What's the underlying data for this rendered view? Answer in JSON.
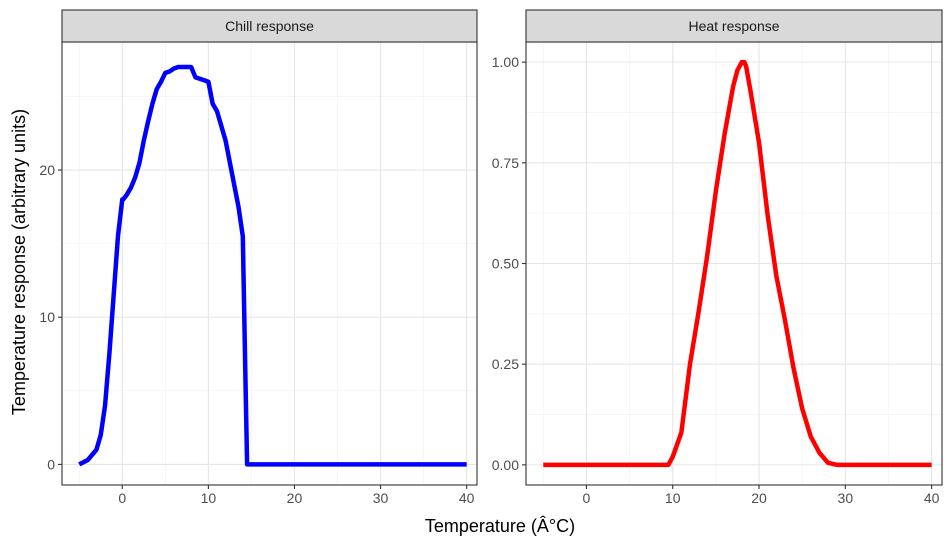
{
  "chart_data": {
    "type": "line",
    "facets": true,
    "xlabel": "Temperature (Â°C)",
    "ylabel": "Temperature response (arbitrary units)",
    "panels": [
      {
        "strip_label": "Chill response",
        "color": "#0000FF",
        "xlim": [
          -7,
          41.2
        ],
        "ylim": [
          -1.4,
          28.7
        ],
        "x_ticks": [
          0,
          10,
          20,
          30,
          40
        ],
        "y_ticks": [
          0,
          10,
          20
        ],
        "y_tick_labels": [
          "0",
          "10",
          "20"
        ],
        "x": [
          -5,
          -4,
          -3,
          -2.5,
          -2,
          -1.5,
          -1,
          -0.5,
          0,
          0.1,
          0.5,
          1,
          1.5,
          2,
          2.5,
          3,
          3.5,
          4,
          4.5,
          5,
          5.5,
          6,
          6.5,
          7,
          7.5,
          8,
          8.5,
          9,
          10,
          10.5,
          11,
          12,
          12.5,
          13,
          13.5,
          14,
          14.3,
          14.5,
          15,
          20,
          25,
          30,
          35,
          40
        ],
        "y": [
          0,
          0.3,
          1.0,
          2.0,
          4.0,
          7.5,
          11.5,
          15.5,
          18.0,
          18.0,
          18.3,
          18.8,
          19.5,
          20.5,
          22.0,
          23.3,
          24.5,
          25.5,
          26.0,
          26.6,
          26.7,
          26.9,
          27.0,
          27.0,
          27.0,
          27.0,
          26.3,
          26.2,
          26.0,
          24.5,
          24.0,
          22.0,
          20.5,
          19.0,
          17.5,
          15.5,
          6.0,
          0,
          0,
          0,
          0,
          0,
          0,
          0
        ]
      },
      {
        "strip_label": "Heat response",
        "color": "#FF0000",
        "xlim": [
          -7,
          41.2
        ],
        "ylim": [
          -0.05,
          1.05
        ],
        "x_ticks": [
          0,
          10,
          20,
          30,
          40
        ],
        "y_ticks": [
          0,
          0.25,
          0.5,
          0.75,
          1.0
        ],
        "y_tick_labels": [
          "0.00",
          "0.25",
          "0.50",
          "0.75",
          "1.00"
        ],
        "x": [
          -5,
          0,
          5,
          9.5,
          10,
          11,
          12,
          13,
          14,
          15,
          16,
          17,
          17.5,
          18,
          18.3,
          18.5,
          19,
          20,
          21,
          22,
          23,
          24,
          25,
          26,
          27,
          28,
          29,
          30,
          35,
          40
        ],
        "y": [
          0,
          0,
          0,
          0,
          0.02,
          0.08,
          0.25,
          0.38,
          0.52,
          0.68,
          0.82,
          0.94,
          0.98,
          1.0,
          1.0,
          0.99,
          0.93,
          0.8,
          0.62,
          0.47,
          0.36,
          0.24,
          0.14,
          0.07,
          0.03,
          0.005,
          0,
          0,
          0,
          0
        ]
      }
    ]
  }
}
